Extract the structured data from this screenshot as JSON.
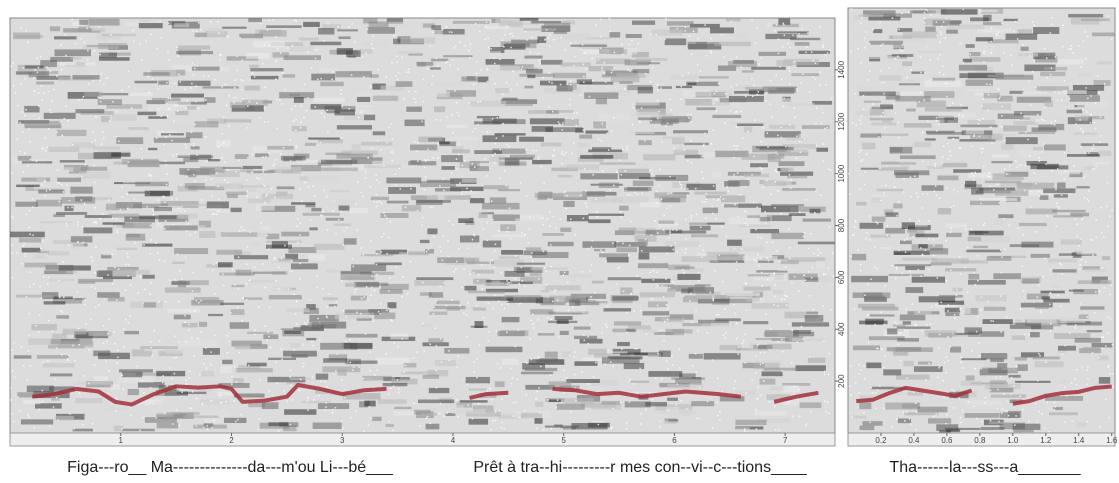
{
  "chart_data": [
    {
      "type": "spectrogram",
      "caption": "Figa---ro__ Ma--------------da---m'ou Li---bé___",
      "caption2": "Prêt à  tra--hi---------r mes con--vi--c---tions____",
      "xlim": [
        0,
        7.45
      ],
      "ylim": [
        0,
        1600
      ],
      "xticks": [
        1,
        2,
        3,
        4,
        5,
        6,
        7
      ],
      "yticks": [
        200,
        400,
        600,
        800,
        1000,
        1200,
        1400
      ],
      "series": [
        {
          "color": "#a3303c",
          "x": [
            0.2,
            0.4,
            0.6,
            0.8,
            0.95,
            1.1,
            1.3,
            1.5,
            1.7,
            1.9,
            2.0,
            2.1,
            2.3,
            2.5,
            2.6,
            2.8,
            3.0,
            3.2,
            3.4,
            3.8,
            4.15,
            4.3,
            4.5,
            4.7,
            4.9,
            5.1,
            5.3,
            5.5,
            5.7,
            5.9,
            6.1,
            6.4,
            6.6,
            6.75,
            6.9,
            7.1,
            7.3
          ],
          "values": [
            140,
            150,
            170,
            160,
            120,
            110,
            150,
            180,
            175,
            180,
            170,
            120,
            125,
            140,
            185,
            170,
            150,
            165,
            170,
            null,
            135,
            150,
            155,
            null,
            170,
            165,
            150,
            155,
            140,
            150,
            160,
            150,
            140,
            null,
            120,
            140,
            155
          ]
        }
      ]
    },
    {
      "type": "spectrogram",
      "caption": "Tha------la---ss---a_______",
      "xlim": [
        0,
        1.62
      ],
      "ylim": [
        0,
        1600
      ],
      "xticks": [
        0.2,
        0.4,
        0.6,
        0.8,
        {
          "value": 1.0,
          "label": "1.0"
        },
        1.2,
        1.4,
        1.6
      ],
      "series": [
        {
          "color": "#a3303c",
          "x": [
            0.05,
            0.15,
            0.25,
            0.35,
            0.45,
            0.55,
            0.65,
            0.75,
            0.85,
            1.0,
            1.1,
            1.2,
            1.3,
            1.4,
            1.5,
            1.6
          ],
          "values": [
            120,
            125,
            150,
            170,
            160,
            150,
            140,
            160,
            null,
            110,
            120,
            140,
            150,
            155,
            170,
            175
          ]
        }
      ]
    }
  ]
}
